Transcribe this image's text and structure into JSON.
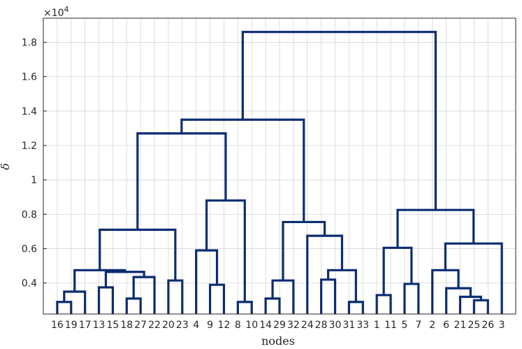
{
  "chart_data": {
    "type": "dendrogram",
    "xlabel": "nodes",
    "ylabel": "δ",
    "y_exponent_label": "×10",
    "y_exponent_power": "4",
    "ylim": [
      0.22,
      1.94
    ],
    "yticks": [
      0.4,
      0.6,
      0.8,
      1.0,
      1.2,
      1.4,
      1.6,
      1.8
    ],
    "ytick_labels": [
      "0.4",
      "0.6",
      "0.8",
      "1",
      "1.2",
      "1.4",
      "1.6",
      "1.8"
    ],
    "grid": true,
    "line_color": "#0b2c72",
    "leaf_order": [
      "16",
      "19",
      "17",
      "13",
      "15",
      "18",
      "27",
      "22",
      "20",
      "23",
      "4",
      "9",
      "12",
      "8",
      "10",
      "14",
      "29",
      "32",
      "24",
      "28",
      "30",
      "31",
      "33",
      "1",
      "11",
      "5",
      "7",
      "2",
      "6",
      "21",
      "25",
      "26",
      "3"
    ],
    "merges": [
      {
        "a": "L:16",
        "b": "L:19",
        "h": 0.29
      },
      {
        "a": "M:0",
        "b": "L:17",
        "h": 0.35
      },
      {
        "a": "L:13",
        "b": "L:15",
        "h": 0.375
      },
      {
        "a": "L:18",
        "b": "L:27",
        "h": 0.31
      },
      {
        "a": "M:3",
        "b": "L:22",
        "h": 0.435
      },
      {
        "a": "M:2",
        "b": "M:4",
        "h": 0.465
      },
      {
        "a": "M:1",
        "b": "M:5",
        "h": 0.475
      },
      {
        "a": "L:20",
        "b": "L:23",
        "h": 0.415
      },
      {
        "a": "M:6",
        "b": "M:7",
        "h": 0.71
      },
      {
        "a": "L:9",
        "b": "L:12",
        "h": 0.39
      },
      {
        "a": "L:4",
        "b": "M:9",
        "h": 0.59
      },
      {
        "a": "L:8",
        "b": "L:10",
        "h": 0.29
      },
      {
        "a": "M:10",
        "b": "M:11",
        "h": 0.88
      },
      {
        "a": "M:8",
        "b": "M:12",
        "h": 1.27
      },
      {
        "a": "L:14",
        "b": "L:29",
        "h": 0.31
      },
      {
        "a": "M:14",
        "b": "L:32",
        "h": 0.415
      },
      {
        "a": "L:28",
        "b": "L:30",
        "h": 0.42
      },
      {
        "a": "L:31",
        "b": "L:33",
        "h": 0.29
      },
      {
        "a": "M:16",
        "b": "M:17",
        "h": 0.475
      },
      {
        "a": "L:24",
        "b": "M:18",
        "h": 0.675
      },
      {
        "a": "M:15",
        "b": "M:19",
        "h": 0.755
      },
      {
        "a": "M:13",
        "b": "M:20",
        "h": 1.35
      },
      {
        "a": "L:1",
        "b": "L:11",
        "h": 0.33
      },
      {
        "a": "L:5",
        "b": "L:7",
        "h": 0.395
      },
      {
        "a": "M:22",
        "b": "M:23",
        "h": 0.605
      },
      {
        "a": "L:25",
        "b": "L:26",
        "h": 0.3
      },
      {
        "a": "L:21",
        "b": "M:25",
        "h": 0.32
      },
      {
        "a": "L:6",
        "b": "M:26",
        "h": 0.37
      },
      {
        "a": "L:2",
        "b": "M:27",
        "h": 0.475
      },
      {
        "a": "M:28",
        "b": "L:3",
        "h": 0.63
      },
      {
        "a": "M:24",
        "b": "M:29",
        "h": 0.825
      },
      {
        "a": "M:21",
        "b": "M:30",
        "h": 1.86
      }
    ]
  }
}
